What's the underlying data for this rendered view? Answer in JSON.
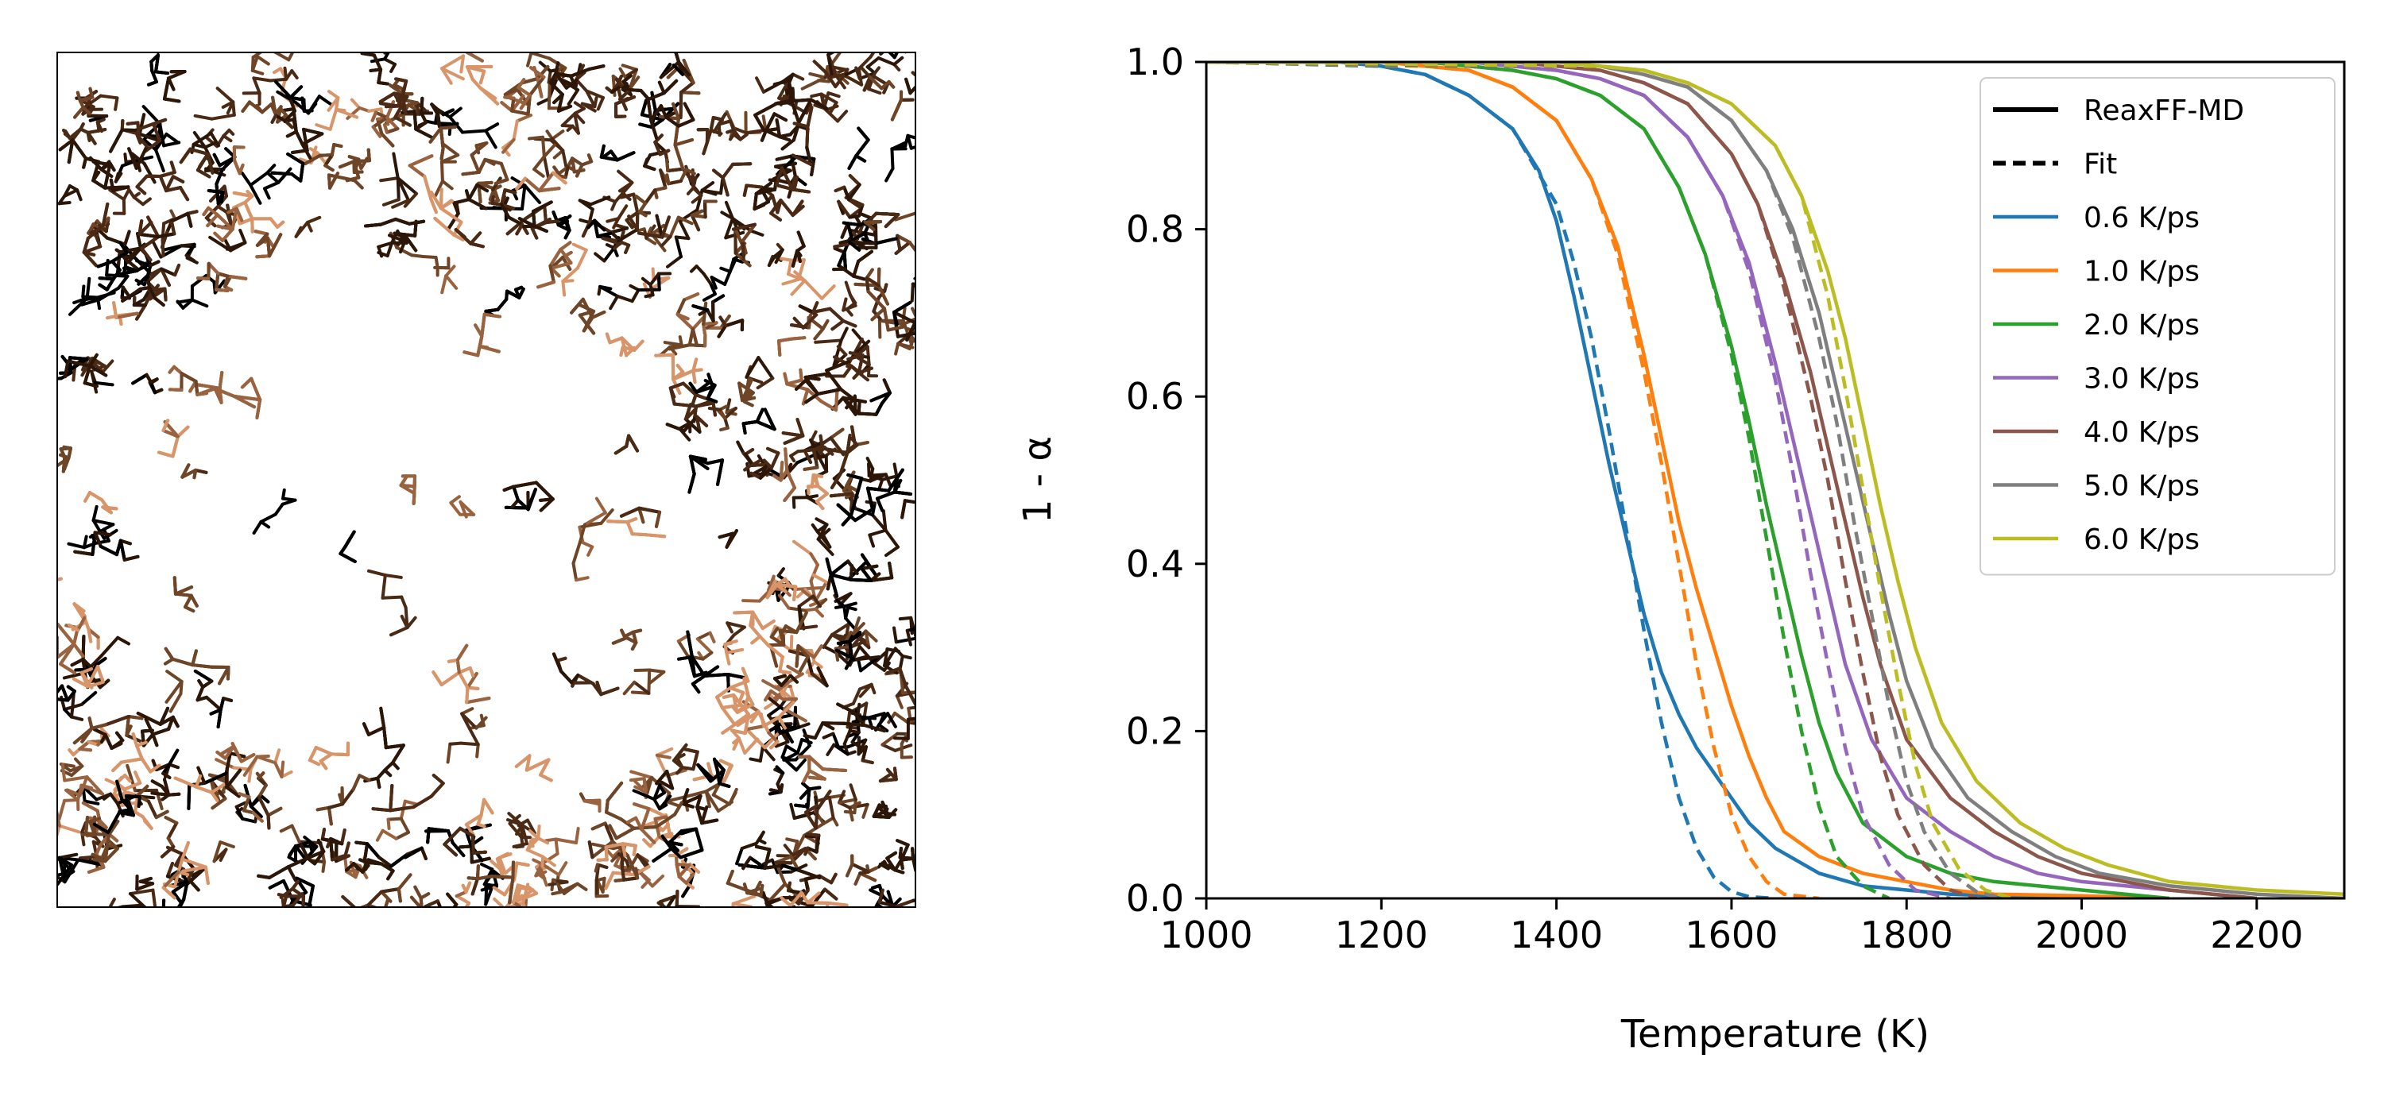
{
  "chart_data": [
    {
      "type": "image",
      "panel": "left",
      "description_visible": "",
      "palette": [
        "#000000",
        "#2b1608",
        "#4a2a14",
        "#6e4527",
        "#9a6340",
        "#d9956a"
      ]
    },
    {
      "type": "line",
      "panel": "right",
      "xlabel": "Temperature (K)",
      "ylabel": "1 - α",
      "xlim": [
        1000,
        2300
      ],
      "ylim": [
        0.0,
        1.0
      ],
      "xticks": [
        "1000",
        "1200",
        "1400",
        "1600",
        "1800",
        "2000",
        "2200"
      ],
      "yticks": [
        "0.0",
        "0.2",
        "0.4",
        "0.6",
        "0.8",
        "1.0"
      ],
      "grid": false,
      "legend_position": "top-right",
      "legend_styles": [
        {
          "label": "ReaxFF-MD",
          "dash": "solid"
        },
        {
          "label": "Fit",
          "dash": "dashed"
        }
      ],
      "series": [
        {
          "name": "0.6 K/ps",
          "color": "#1f77b4",
          "md_x": [
            1000,
            1150,
            1200,
            1250,
            1300,
            1350,
            1380,
            1400,
            1420,
            1440,
            1460,
            1480,
            1500,
            1520,
            1540,
            1560,
            1580,
            1600,
            1620,
            1650,
            1700,
            1750,
            1800,
            1850,
            1900,
            2000
          ],
          "md_y": [
            1.0,
            1.0,
            0.995,
            0.985,
            0.96,
            0.92,
            0.87,
            0.81,
            0.72,
            0.62,
            0.52,
            0.43,
            0.34,
            0.27,
            0.22,
            0.18,
            0.15,
            0.12,
            0.09,
            0.06,
            0.03,
            0.015,
            0.01,
            0.005,
            0.003,
            0.0
          ],
          "fit_x": [
            1000,
            1200,
            1250,
            1300,
            1350,
            1400,
            1420,
            1440,
            1460,
            1480,
            1500,
            1520,
            1540,
            1560,
            1580,
            1600,
            1620,
            1650
          ],
          "fit_y": [
            1.0,
            0.995,
            0.985,
            0.96,
            0.92,
            0.83,
            0.76,
            0.67,
            0.56,
            0.44,
            0.32,
            0.21,
            0.12,
            0.06,
            0.025,
            0.008,
            0.002,
            0.0
          ]
        },
        {
          "name": "1.0 K/ps",
          "color": "#ff7f0e",
          "md_x": [
            1000,
            1200,
            1250,
            1300,
            1350,
            1400,
            1440,
            1470,
            1500,
            1520,
            1540,
            1560,
            1580,
            1600,
            1620,
            1640,
            1660,
            1700,
            1750,
            1800,
            1850,
            1900,
            2000,
            2100
          ],
          "md_y": [
            1.0,
            1.0,
            0.995,
            0.99,
            0.97,
            0.93,
            0.86,
            0.78,
            0.65,
            0.55,
            0.45,
            0.37,
            0.3,
            0.23,
            0.17,
            0.12,
            0.08,
            0.05,
            0.03,
            0.02,
            0.01,
            0.005,
            0.003,
            0.0
          ],
          "fit_x": [
            1000,
            1250,
            1300,
            1350,
            1400,
            1440,
            1470,
            1500,
            1520,
            1540,
            1560,
            1580,
            1600,
            1620,
            1640,
            1660,
            1700
          ],
          "fit_y": [
            1.0,
            0.995,
            0.99,
            0.97,
            0.93,
            0.86,
            0.77,
            0.63,
            0.52,
            0.4,
            0.28,
            0.18,
            0.1,
            0.05,
            0.02,
            0.005,
            0.0
          ]
        },
        {
          "name": "2.0 K/ps",
          "color": "#2ca02c",
          "md_x": [
            1000,
            1250,
            1300,
            1350,
            1400,
            1450,
            1500,
            1540,
            1570,
            1600,
            1620,
            1640,
            1660,
            1680,
            1700,
            1720,
            1750,
            1800,
            1850,
            1900,
            2000,
            2100
          ],
          "md_y": [
            1.0,
            1.0,
            0.995,
            0.99,
            0.98,
            0.96,
            0.92,
            0.85,
            0.77,
            0.66,
            0.57,
            0.47,
            0.38,
            0.29,
            0.21,
            0.15,
            0.09,
            0.05,
            0.03,
            0.02,
            0.01,
            0.0
          ],
          "fit_x": [
            1000,
            1300,
            1350,
            1400,
            1450,
            1500,
            1540,
            1570,
            1600,
            1620,
            1640,
            1660,
            1680,
            1700,
            1720,
            1750,
            1780
          ],
          "fit_y": [
            1.0,
            0.995,
            0.99,
            0.98,
            0.96,
            0.92,
            0.85,
            0.77,
            0.65,
            0.55,
            0.43,
            0.31,
            0.2,
            0.11,
            0.05,
            0.015,
            0.0
          ]
        },
        {
          "name": "3.0 K/ps",
          "color": "#9467bd",
          "md_x": [
            1000,
            1300,
            1350,
            1400,
            1450,
            1500,
            1550,
            1590,
            1620,
            1650,
            1670,
            1690,
            1710,
            1730,
            1760,
            1800,
            1850,
            1900,
            1950,
            2000,
            2100,
            2200
          ],
          "md_y": [
            1.0,
            1.0,
            0.995,
            0.99,
            0.98,
            0.96,
            0.91,
            0.84,
            0.76,
            0.64,
            0.55,
            0.46,
            0.37,
            0.28,
            0.19,
            0.12,
            0.08,
            0.05,
            0.03,
            0.02,
            0.01,
            0.0
          ],
          "fit_x": [
            1000,
            1350,
            1400,
            1450,
            1500,
            1550,
            1590,
            1620,
            1650,
            1670,
            1690,
            1710,
            1730,
            1750,
            1780,
            1810,
            1850
          ],
          "fit_y": [
            1.0,
            0.995,
            0.99,
            0.98,
            0.96,
            0.91,
            0.84,
            0.75,
            0.62,
            0.51,
            0.39,
            0.28,
            0.18,
            0.1,
            0.04,
            0.01,
            0.0
          ]
        },
        {
          "name": "4.0 K/ps",
          "color": "#8c564b",
          "md_x": [
            1000,
            1350,
            1400,
            1450,
            1500,
            1550,
            1600,
            1630,
            1660,
            1690,
            1710,
            1730,
            1750,
            1770,
            1800,
            1850,
            1900,
            1950,
            2000,
            2100,
            2200
          ],
          "md_y": [
            1.0,
            1.0,
            0.995,
            0.99,
            0.975,
            0.95,
            0.89,
            0.83,
            0.74,
            0.63,
            0.54,
            0.45,
            0.36,
            0.28,
            0.19,
            0.12,
            0.08,
            0.05,
            0.03,
            0.01,
            0.0
          ],
          "fit_x": [
            1000,
            1400,
            1450,
            1500,
            1550,
            1600,
            1630,
            1660,
            1690,
            1710,
            1730,
            1750,
            1770,
            1790,
            1820,
            1850,
            1880
          ],
          "fit_y": [
            1.0,
            0.995,
            0.99,
            0.975,
            0.95,
            0.89,
            0.83,
            0.73,
            0.6,
            0.5,
            0.38,
            0.27,
            0.17,
            0.1,
            0.04,
            0.01,
            0.0
          ]
        },
        {
          "name": "5.0 K/ps",
          "color": "#7f7f7f",
          "md_x": [
            1000,
            1400,
            1450,
            1500,
            1550,
            1600,
            1640,
            1670,
            1700,
            1720,
            1740,
            1760,
            1780,
            1800,
            1830,
            1870,
            1920,
            1970,
            2020,
            2100,
            2200,
            2300
          ],
          "md_y": [
            1.0,
            1.0,
            0.995,
            0.985,
            0.97,
            0.93,
            0.87,
            0.8,
            0.7,
            0.61,
            0.52,
            0.43,
            0.34,
            0.26,
            0.18,
            0.12,
            0.08,
            0.05,
            0.03,
            0.015,
            0.005,
            0.0
          ],
          "fit_x": [
            1000,
            1450,
            1500,
            1550,
            1600,
            1640,
            1670,
            1700,
            1720,
            1740,
            1760,
            1780,
            1800,
            1820,
            1850,
            1880,
            1910
          ],
          "fit_y": [
            1.0,
            0.995,
            0.985,
            0.97,
            0.93,
            0.87,
            0.79,
            0.67,
            0.57,
            0.45,
            0.34,
            0.23,
            0.14,
            0.08,
            0.03,
            0.008,
            0.0
          ]
        },
        {
          "name": "6.0 K/ps",
          "color": "#bcbd22",
          "md_x": [
            1000,
            1400,
            1450,
            1500,
            1550,
            1600,
            1650,
            1680,
            1710,
            1730,
            1750,
            1770,
            1790,
            1810,
            1840,
            1880,
            1930,
            1980,
            2030,
            2100,
            2200,
            2300
          ],
          "md_y": [
            1.0,
            1.0,
            0.995,
            0.99,
            0.975,
            0.95,
            0.9,
            0.84,
            0.75,
            0.67,
            0.57,
            0.47,
            0.38,
            0.3,
            0.21,
            0.14,
            0.09,
            0.06,
            0.04,
            0.02,
            0.01,
            0.005
          ],
          "fit_x": [
            1000,
            1450,
            1500,
            1550,
            1600,
            1650,
            1680,
            1710,
            1730,
            1750,
            1770,
            1790,
            1810,
            1830,
            1860,
            1890,
            1920
          ],
          "fit_y": [
            1.0,
            0.995,
            0.99,
            0.975,
            0.95,
            0.9,
            0.84,
            0.72,
            0.61,
            0.49,
            0.37,
            0.26,
            0.16,
            0.09,
            0.035,
            0.01,
            0.0
          ]
        }
      ]
    }
  ]
}
